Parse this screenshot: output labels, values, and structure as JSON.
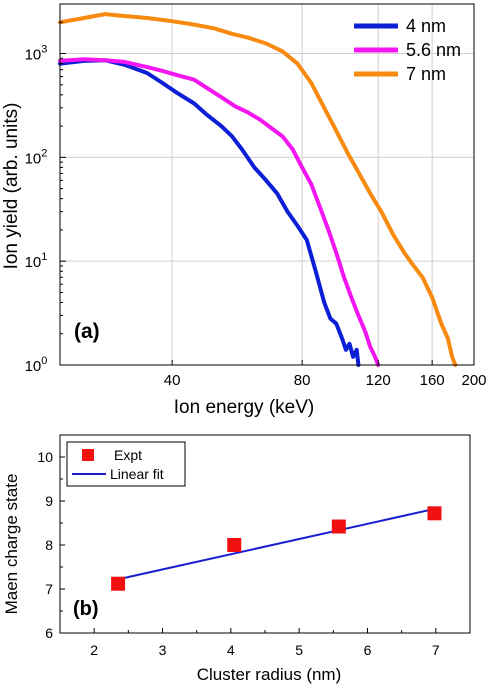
{
  "chart_data": [
    {
      "panel_label": "(a)",
      "type": "line",
      "xlabel": "Ion energy (keV)",
      "ylabel": "Ion yield (arb. units)",
      "xscale": "log",
      "yscale": "log",
      "xlim": [
        22,
        200
      ],
      "ylim": [
        1,
        3000
      ],
      "x_ticks": [
        40,
        80,
        120,
        160,
        200
      ],
      "x_tick_labels": [
        "40",
        "80",
        "120",
        "160",
        "200"
      ],
      "y_ticks": [
        1,
        10,
        100,
        1000
      ],
      "y_tick_labels": [
        {
          "base": "10",
          "exp": "0"
        },
        {
          "base": "10",
          "exp": "1"
        },
        {
          "base": "10",
          "exp": "2"
        },
        {
          "base": "10",
          "exp": "3"
        }
      ],
      "grid": true,
      "legend_position": "top-right",
      "series": [
        {
          "name": "4 nm",
          "color": "#0a1fd6",
          "x": [
            22,
            25,
            28,
            31,
            35,
            38,
            41,
            45,
            48,
            52,
            55,
            58,
            62,
            66,
            70,
            74,
            78,
            82,
            86,
            90,
            93,
            96,
            99,
            101,
            103,
            105,
            107,
            108
          ],
          "y": [
            800,
            850,
            860,
            780,
            650,
            520,
            420,
            330,
            260,
            200,
            160,
            120,
            80,
            60,
            45,
            30,
            22,
            16,
            8,
            4,
            2.8,
            2.5,
            1.8,
            1.4,
            1.6,
            1.2,
            1.4,
            1
          ]
        },
        {
          "name": "5.6 nm",
          "color": "#f316f0",
          "x": [
            22,
            25,
            28,
            31,
            35,
            38,
            41,
            45,
            48,
            52,
            56,
            60,
            64,
            68,
            72,
            76,
            80,
            84,
            88,
            92,
            96,
            100,
            104,
            108,
            112,
            115,
            118,
            120
          ],
          "y": [
            850,
            880,
            860,
            830,
            740,
            680,
            620,
            560,
            470,
            380,
            310,
            270,
            230,
            190,
            160,
            120,
            80,
            55,
            33,
            20,
            12,
            7,
            4.5,
            3,
            2.1,
            1.5,
            1.2,
            1
          ]
        },
        {
          "name": "7 nm",
          "color": "#f78a0f",
          "x": [
            22,
            25,
            28,
            31,
            35,
            40,
            45,
            50,
            55,
            60,
            66,
            72,
            78,
            84,
            90,
            96,
            102,
            108,
            115,
            122,
            130,
            138,
            145,
            152,
            160,
            168,
            174,
            178,
            181
          ],
          "y": [
            2000,
            2200,
            2400,
            2300,
            2200,
            2050,
            1900,
            1750,
            1550,
            1420,
            1250,
            1050,
            800,
            520,
            300,
            180,
            110,
            72,
            45,
            30,
            18,
            12,
            9,
            7,
            4.5,
            2.5,
            1.8,
            1.2,
            1
          ]
        }
      ]
    },
    {
      "panel_label": "(b)",
      "type": "scatter",
      "xlabel": "Cluster radius (nm)",
      "ylabel": "Maen charge state",
      "xlim": [
        1.5,
        7.5
      ],
      "ylim": [
        6,
        10.5
      ],
      "x_ticks": [
        2,
        3,
        4,
        5,
        6,
        7
      ],
      "x_tick_labels": [
        "2",
        "3",
        "4",
        "5",
        "6",
        "7"
      ],
      "y_ticks": [
        6,
        7,
        8,
        9,
        10
      ],
      "y_tick_labels": [
        "6",
        "7",
        "8",
        "9",
        "10"
      ],
      "grid": false,
      "legend_position": "top-left",
      "series": [
        {
          "name": "Expt",
          "kind": "markers",
          "color": "#f01010",
          "x": [
            2.35,
            4.05,
            5.58,
            6.98
          ],
          "y": [
            7.12,
            8.0,
            8.42,
            8.72
          ]
        },
        {
          "name": "Linear fit",
          "kind": "line",
          "color": "#1a1fd0",
          "x": [
            2.35,
            6.98
          ],
          "y": [
            7.22,
            8.82
          ]
        }
      ]
    }
  ]
}
